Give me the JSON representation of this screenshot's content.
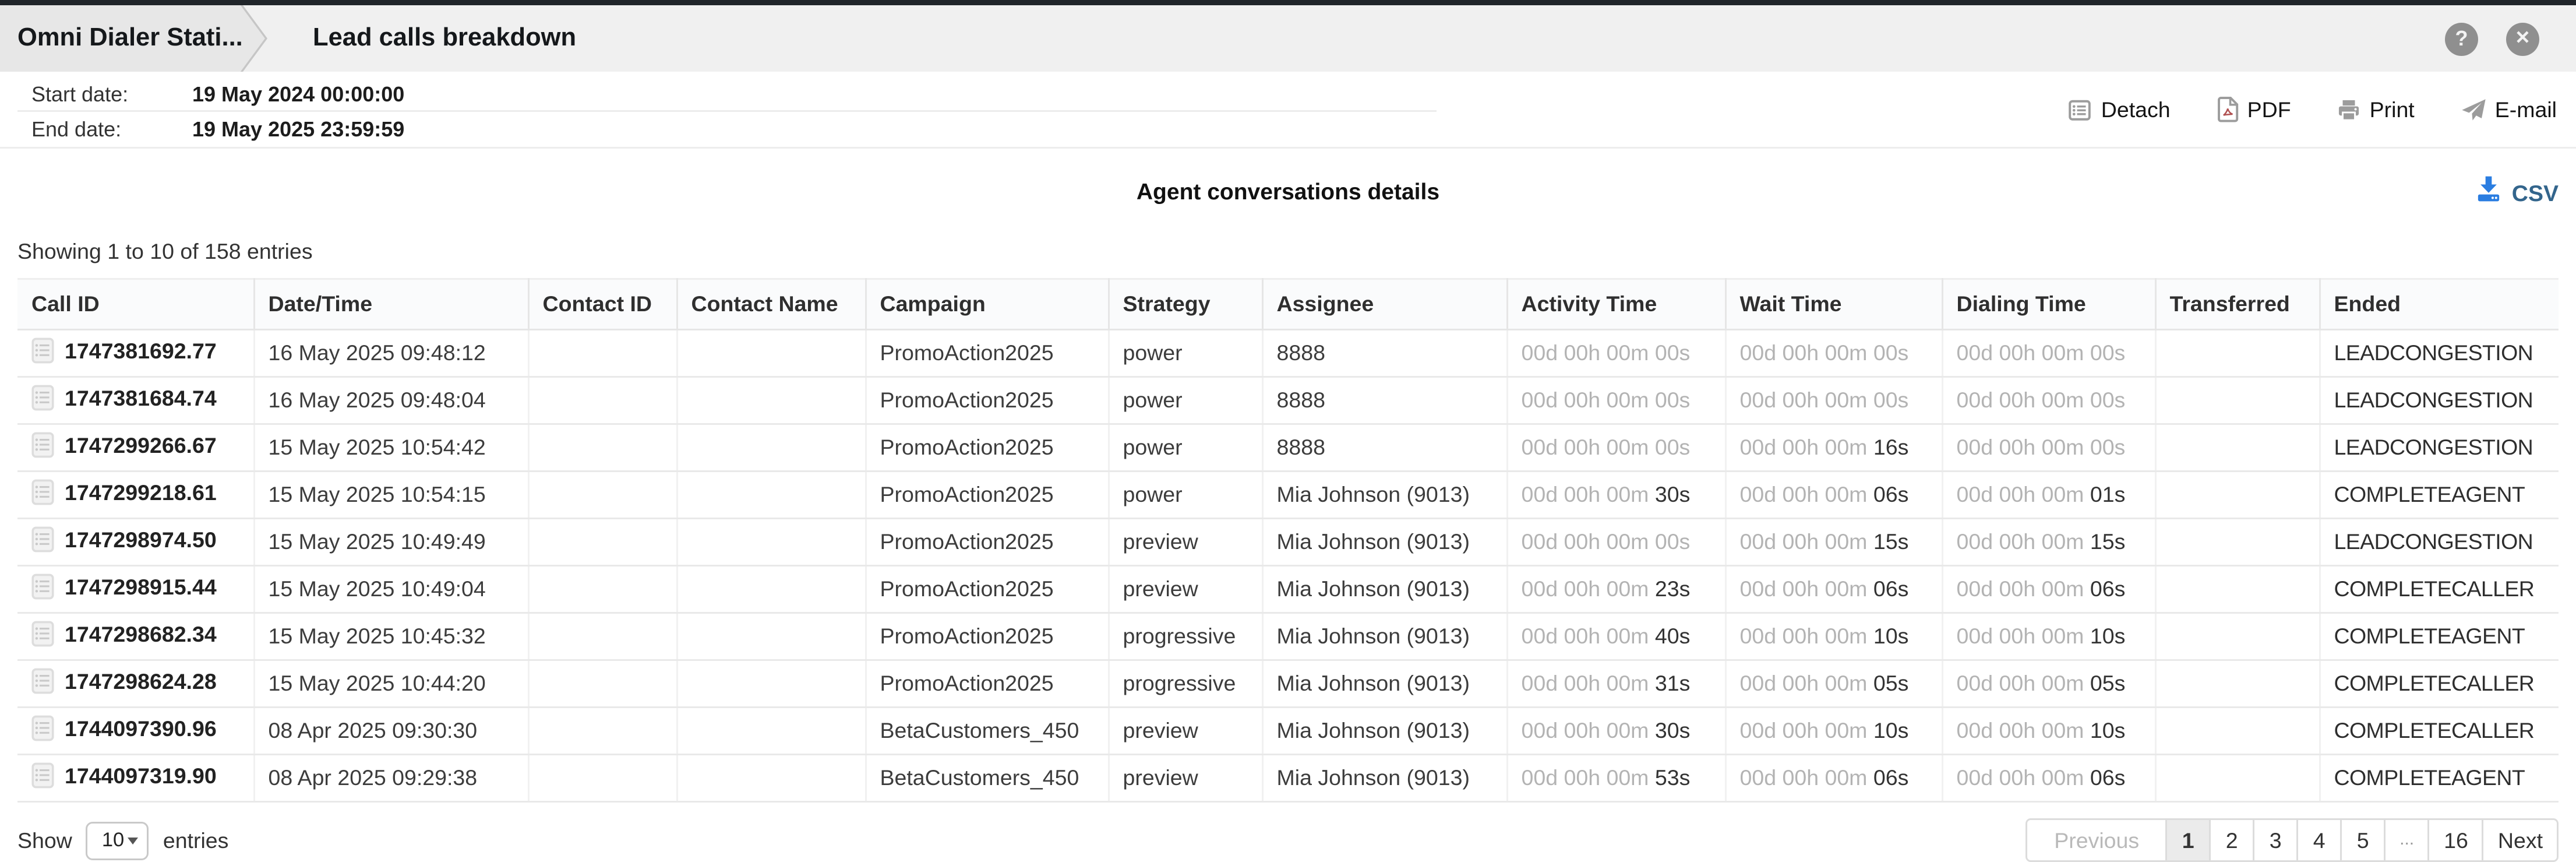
{
  "header": {
    "tab_title": "Omni Dialer Stati...",
    "page_title": "Lead calls breakdown",
    "help_glyph": "?",
    "close_glyph": "✕"
  },
  "filters": {
    "start_label": "Start date:",
    "start_value": "19 May 2024 00:00:00",
    "end_label": "End date:",
    "end_value": "19 May 2025 23:59:59"
  },
  "toolbar": {
    "detach_label": "Detach",
    "pdf_label": "PDF",
    "print_label": "Print",
    "email_label": "E-mail"
  },
  "report": {
    "title": "Agent conversations details",
    "csv_label": "CSV",
    "showing_text": "Showing 1 to 10 of 158 entries"
  },
  "colors": {
    "csv_icon": "#2a7de1",
    "csv_text": "#33658c",
    "icon_gray": "#9c9c9c",
    "topbar": "#20252a"
  },
  "table": {
    "columns": [
      "Call ID",
      "Date/Time",
      "Contact ID",
      "Contact Name",
      "Campaign",
      "Strategy",
      "Assignee",
      "Activity Time",
      "Wait Time",
      "Dialing Time",
      "Transferred",
      "Ended"
    ],
    "rows": [
      {
        "call_id": "1747381692.77",
        "datetime": "16 May 2025 09:48:12",
        "contact_id": "",
        "contact_name": "",
        "campaign": "PromoAction2025",
        "strategy": "power",
        "assignee": "8888",
        "activity_muted": "00d 00h 00m 00s",
        "activity_strong": "",
        "wait_muted": "00d 00h 00m 00s",
        "wait_strong": "",
        "dialing_muted": "00d 00h 00m 00s",
        "dialing_strong": "",
        "transferred": "",
        "ended": "LEADCONGESTION"
      },
      {
        "call_id": "1747381684.74",
        "datetime": "16 May 2025 09:48:04",
        "contact_id": "",
        "contact_name": "",
        "campaign": "PromoAction2025",
        "strategy": "power",
        "assignee": "8888",
        "activity_muted": "00d 00h 00m 00s",
        "activity_strong": "",
        "wait_muted": "00d 00h 00m 00s",
        "wait_strong": "",
        "dialing_muted": "00d 00h 00m 00s",
        "dialing_strong": "",
        "transferred": "",
        "ended": "LEADCONGESTION"
      },
      {
        "call_id": "1747299266.67",
        "datetime": "15 May 2025 10:54:42",
        "contact_id": "",
        "contact_name": "",
        "campaign": "PromoAction2025",
        "strategy": "power",
        "assignee": "8888",
        "activity_muted": "00d 00h 00m 00s",
        "activity_strong": "",
        "wait_muted": "00d 00h 00m ",
        "wait_strong": "16s",
        "dialing_muted": "00d 00h 00m 00s",
        "dialing_strong": "",
        "transferred": "",
        "ended": "LEADCONGESTION"
      },
      {
        "call_id": "1747299218.61",
        "datetime": "15 May 2025 10:54:15",
        "contact_id": "",
        "contact_name": "",
        "campaign": "PromoAction2025",
        "strategy": "power",
        "assignee": "Mia Johnson (9013)",
        "activity_muted": "00d 00h 00m ",
        "activity_strong": "30s",
        "wait_muted": "00d 00h 00m ",
        "wait_strong": "06s",
        "dialing_muted": "00d 00h 00m ",
        "dialing_strong": "01s",
        "transferred": "",
        "ended": "COMPLETEAGENT"
      },
      {
        "call_id": "1747298974.50",
        "datetime": "15 May 2025 10:49:49",
        "contact_id": "",
        "contact_name": "",
        "campaign": "PromoAction2025",
        "strategy": "preview",
        "assignee": "Mia Johnson (9013)",
        "activity_muted": "00d 00h 00m 00s",
        "activity_strong": "",
        "wait_muted": "00d 00h 00m ",
        "wait_strong": "15s",
        "dialing_muted": "00d 00h 00m ",
        "dialing_strong": "15s",
        "transferred": "",
        "ended": "LEADCONGESTION"
      },
      {
        "call_id": "1747298915.44",
        "datetime": "15 May 2025 10:49:04",
        "contact_id": "",
        "contact_name": "",
        "campaign": "PromoAction2025",
        "strategy": "preview",
        "assignee": "Mia Johnson (9013)",
        "activity_muted": "00d 00h 00m ",
        "activity_strong": "23s",
        "wait_muted": "00d 00h 00m ",
        "wait_strong": "06s",
        "dialing_muted": "00d 00h 00m ",
        "dialing_strong": "06s",
        "transferred": "",
        "ended": "COMPLETECALLER"
      },
      {
        "call_id": "1747298682.34",
        "datetime": "15 May 2025 10:45:32",
        "contact_id": "",
        "contact_name": "",
        "campaign": "PromoAction2025",
        "strategy": "progressive",
        "assignee": "Mia Johnson (9013)",
        "activity_muted": "00d 00h 00m ",
        "activity_strong": "40s",
        "wait_muted": "00d 00h 00m ",
        "wait_strong": "10s",
        "dialing_muted": "00d 00h 00m ",
        "dialing_strong": "10s",
        "transferred": "",
        "ended": "COMPLETEAGENT"
      },
      {
        "call_id": "1747298624.28",
        "datetime": "15 May 2025 10:44:20",
        "contact_id": "",
        "contact_name": "",
        "campaign": "PromoAction2025",
        "strategy": "progressive",
        "assignee": "Mia Johnson (9013)",
        "activity_muted": "00d 00h 00m ",
        "activity_strong": "31s",
        "wait_muted": "00d 00h 00m ",
        "wait_strong": "05s",
        "dialing_muted": "00d 00h 00m ",
        "dialing_strong": "05s",
        "transferred": "",
        "ended": "COMPLETECALLER"
      },
      {
        "call_id": "1744097390.96",
        "datetime": "08 Apr 2025 09:30:30",
        "contact_id": "",
        "contact_name": "",
        "campaign": "BetaCustomers_450",
        "strategy": "preview",
        "assignee": "Mia Johnson (9013)",
        "activity_muted": "00d 00h 00m ",
        "activity_strong": "30s",
        "wait_muted": "00d 00h 00m ",
        "wait_strong": "10s",
        "dialing_muted": "00d 00h 00m ",
        "dialing_strong": "10s",
        "transferred": "",
        "ended": "COMPLETECALLER"
      },
      {
        "call_id": "1744097319.90",
        "datetime": "08 Apr 2025 09:29:38",
        "contact_id": "",
        "contact_name": "",
        "campaign": "BetaCustomers_450",
        "strategy": "preview",
        "assignee": "Mia Johnson (9013)",
        "activity_muted": "00d 00h 00m ",
        "activity_strong": "53s",
        "wait_muted": "00d 00h 00m ",
        "wait_strong": "06s",
        "dialing_muted": "00d 00h 00m ",
        "dialing_strong": "06s",
        "transferred": "",
        "ended": "COMPLETEAGENT"
      }
    ]
  },
  "footer": {
    "show_label": "Show",
    "page_size": "10",
    "entries_label": "entries",
    "pagination": {
      "previous": "Previous",
      "pages": [
        "1",
        "2",
        "3",
        "4",
        "5",
        "...",
        "16"
      ],
      "active_page": "1",
      "next": "Next"
    }
  }
}
